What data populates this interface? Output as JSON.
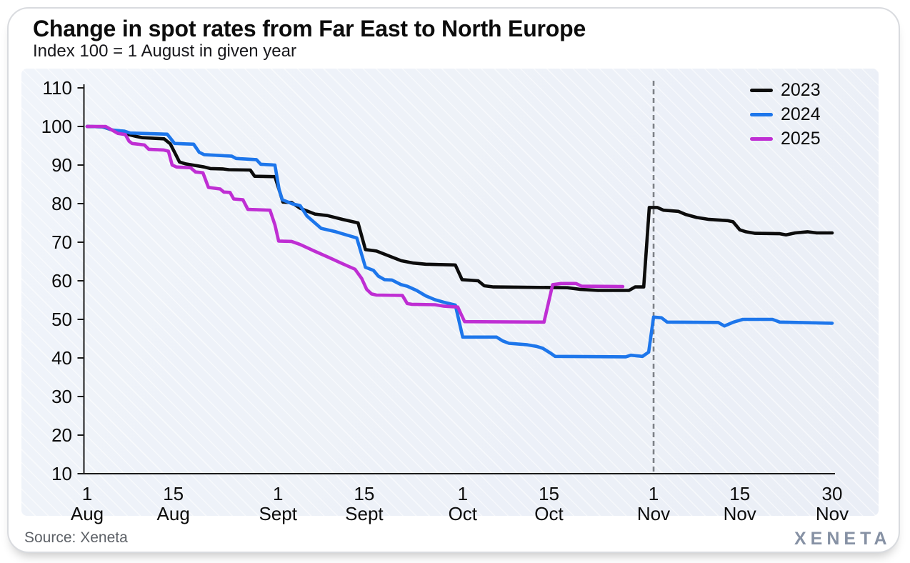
{
  "header": {},
  "chart_data": {
    "type": "line",
    "title": "Change in spot rates from Far East to North Europe",
    "subtitle": "Index 100 = 1 August in given year",
    "xlabel": "",
    "ylabel": "",
    "ylim": [
      10,
      110
    ],
    "y_tick_step": 10,
    "y_ticks": [
      10,
      20,
      30,
      40,
      50,
      60,
      70,
      80,
      90,
      100,
      110
    ],
    "x_unit": "days since 1 August",
    "xlim_days": [
      0,
      121
    ],
    "x_ticks": [
      {
        "day": 0,
        "top": "1",
        "bottom": "Aug"
      },
      {
        "day": 14,
        "top": "15",
        "bottom": "Aug"
      },
      {
        "day": 31,
        "top": "1",
        "bottom": "Sept"
      },
      {
        "day": 45,
        "top": "15",
        "bottom": "Sept"
      },
      {
        "day": 61,
        "top": "1",
        "bottom": "Oct"
      },
      {
        "day": 75,
        "top": "15",
        "bottom": "Oct"
      },
      {
        "day": 92,
        "top": "1",
        "bottom": "Nov"
      },
      {
        "day": 106,
        "top": "15",
        "bottom": "Nov"
      },
      {
        "day": 121,
        "top": "30",
        "bottom": "Nov"
      }
    ],
    "annotation": {
      "type": "vertical-dashed-line",
      "day": 92,
      "at_label": "1 Nov",
      "color": "#7d8187"
    },
    "grid": false,
    "legend_position": "top-right",
    "series": [
      {
        "name": "2023",
        "color": "#0c0c0c",
        "points": [
          [
            0,
            100
          ],
          [
            2.5,
            99.9
          ],
          [
            5,
            98.6
          ],
          [
            7,
            97.8
          ],
          [
            8,
            97.4
          ],
          [
            9,
            97.1
          ],
          [
            12.5,
            96.8
          ],
          [
            13.5,
            95.5
          ],
          [
            15,
            90.8
          ],
          [
            16,
            90.3
          ],
          [
            19,
            89.5
          ],
          [
            20,
            89.1
          ],
          [
            22,
            89
          ],
          [
            23,
            88.8
          ],
          [
            26.5,
            88.7
          ],
          [
            27.2,
            87.1
          ],
          [
            30.5,
            87
          ],
          [
            31.2,
            83.5
          ],
          [
            31.8,
            80.4
          ],
          [
            33.2,
            80.3
          ],
          [
            34.6,
            78.8
          ],
          [
            37,
            77.3
          ],
          [
            39,
            76.9
          ],
          [
            41.5,
            75.9
          ],
          [
            44,
            75
          ],
          [
            45.2,
            68.1
          ],
          [
            47,
            67.7
          ],
          [
            51,
            65.2
          ],
          [
            53,
            64.6
          ],
          [
            55,
            64.3
          ],
          [
            59.8,
            64.1
          ],
          [
            60.9,
            60.3
          ],
          [
            63.5,
            60
          ],
          [
            64.5,
            58.7
          ],
          [
            66,
            58.4
          ],
          [
            78,
            58.2
          ],
          [
            80,
            57.8
          ],
          [
            83,
            57.5
          ],
          [
            88,
            57.5
          ],
          [
            89,
            58.4
          ],
          [
            90.4,
            58.4
          ],
          [
            91.3,
            79
          ],
          [
            92.6,
            79
          ],
          [
            93.6,
            78.3
          ],
          [
            96,
            78
          ],
          [
            97.2,
            77.2
          ],
          [
            99,
            76.4
          ],
          [
            101,
            75.9
          ],
          [
            104,
            75.6
          ],
          [
            104.9,
            75.3
          ],
          [
            106,
            73.2
          ],
          [
            107,
            72.7
          ],
          [
            108.5,
            72.3
          ],
          [
            112.5,
            72.2
          ],
          [
            113.5,
            71.9
          ],
          [
            115,
            72.4
          ],
          [
            117,
            72.7
          ],
          [
            118.5,
            72.4
          ],
          [
            121,
            72.4
          ]
        ]
      },
      {
        "name": "2024",
        "color": "#1d76eb",
        "points": [
          [
            0,
            100
          ],
          [
            2.6,
            99.9
          ],
          [
            4,
            99.1
          ],
          [
            6,
            98.8
          ],
          [
            7,
            98.3
          ],
          [
            13,
            98
          ],
          [
            14.2,
            95.6
          ],
          [
            17.3,
            95.4
          ],
          [
            18.2,
            93.3
          ],
          [
            19,
            92.7
          ],
          [
            23.5,
            92.3
          ],
          [
            24.2,
            91.7
          ],
          [
            27.5,
            91.4
          ],
          [
            28.2,
            90.2
          ],
          [
            30.5,
            90
          ],
          [
            31.2,
            83.5
          ],
          [
            31.7,
            81
          ],
          [
            33.4,
            79.9
          ],
          [
            34.6,
            79.5
          ],
          [
            35.7,
            76.8
          ],
          [
            38,
            73.6
          ],
          [
            40.4,
            72.7
          ],
          [
            42.3,
            71.8
          ],
          [
            43.8,
            71.1
          ],
          [
            45.2,
            63.5
          ],
          [
            46.5,
            62.7
          ],
          [
            47.3,
            61.2
          ],
          [
            48.3,
            60.3
          ],
          [
            49.5,
            60.2
          ],
          [
            51,
            59
          ],
          [
            52,
            58.6
          ],
          [
            53.5,
            57.5
          ],
          [
            55,
            56.1
          ],
          [
            56.5,
            55.1
          ],
          [
            58,
            54.4
          ],
          [
            59.8,
            53.7
          ],
          [
            61,
            45.4
          ],
          [
            66.5,
            45.4
          ],
          [
            67.5,
            44.4
          ],
          [
            68.5,
            43.8
          ],
          [
            71.5,
            43.4
          ],
          [
            73,
            43
          ],
          [
            74,
            42.5
          ],
          [
            75.3,
            41.2
          ],
          [
            76,
            40.4
          ],
          [
            87.5,
            40.3
          ],
          [
            88.3,
            40.7
          ],
          [
            90.2,
            40.4
          ],
          [
            91.2,
            41.5
          ],
          [
            92,
            50.6
          ],
          [
            93.3,
            50.4
          ],
          [
            94.2,
            49.3
          ],
          [
            102.5,
            49.2
          ],
          [
            103.5,
            48.3
          ],
          [
            105,
            49.3
          ],
          [
            106.5,
            50
          ],
          [
            111.3,
            50
          ],
          [
            112.5,
            49.3
          ],
          [
            121,
            49
          ]
        ]
      },
      {
        "name": "2025",
        "color": "#bf2ed3",
        "points": [
          [
            0,
            100
          ],
          [
            3,
            100
          ],
          [
            5,
            98.2
          ],
          [
            6.2,
            97.9
          ],
          [
            6.8,
            96.2
          ],
          [
            7.3,
            95.6
          ],
          [
            9.3,
            95.2
          ],
          [
            10,
            94.1
          ],
          [
            12.4,
            93.9
          ],
          [
            13.2,
            93.6
          ],
          [
            13.8,
            90
          ],
          [
            14.5,
            89.5
          ],
          [
            16.8,
            89.3
          ],
          [
            17.6,
            88.2
          ],
          [
            18.8,
            88
          ],
          [
            19.7,
            84.2
          ],
          [
            21.6,
            83.8
          ],
          [
            22.2,
            83
          ],
          [
            23.2,
            82.9
          ],
          [
            23.8,
            81.2
          ],
          [
            25.3,
            81
          ],
          [
            26.1,
            78.5
          ],
          [
            29.7,
            78.3
          ],
          [
            30.5,
            74.5
          ],
          [
            31.1,
            70.3
          ],
          [
            33.2,
            70.2
          ],
          [
            34.6,
            69.4
          ],
          [
            36.9,
            67.7
          ],
          [
            39.2,
            66.1
          ],
          [
            41.5,
            64.4
          ],
          [
            43.5,
            63
          ],
          [
            44.6,
            60.6
          ],
          [
            45.4,
            57.8
          ],
          [
            46.2,
            56.6
          ],
          [
            47,
            56.3
          ],
          [
            51.2,
            56.2
          ],
          [
            52,
            54.1
          ],
          [
            52.7,
            53.9
          ],
          [
            56.5,
            53.8
          ],
          [
            58,
            53.4
          ],
          [
            60.2,
            53.2
          ],
          [
            61.3,
            49.4
          ],
          [
            74.2,
            49.3
          ],
          [
            75.6,
            59
          ],
          [
            77,
            59.3
          ],
          [
            79.4,
            59.3
          ],
          [
            80.3,
            58.6
          ],
          [
            87,
            58.5
          ]
        ]
      }
    ]
  },
  "footer": {
    "source": "Source: Xeneta",
    "logo_text": "XENETA"
  },
  "colors": {
    "series_2023": "#0c0c0c",
    "series_2024": "#1d76eb",
    "series_2025": "#bf2ed3",
    "dashed_line": "#7d8187",
    "axis": "#1a1a1a",
    "panel_background": "#edf1f8",
    "card_border": "#d9dbdf",
    "source_text": "#5d6167",
    "logo_text": "#8691a4"
  }
}
